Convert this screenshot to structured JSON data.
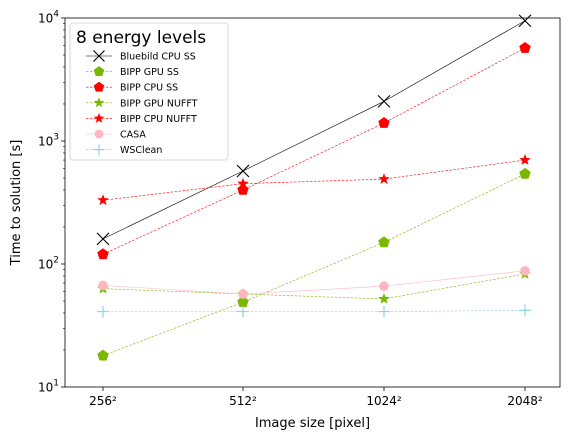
{
  "chart_data": {
    "type": "line",
    "title": "",
    "legend_title": "8 energy levels",
    "legend_position": "upper-left",
    "xlabel": "Image size [pixel]",
    "ylabel": "Time to solution [s]",
    "yscale": "log",
    "ylim": [
      10,
      10000
    ],
    "grid": false,
    "categories": [
      "256²",
      "512²",
      "1024²",
      "2048²"
    ],
    "y_ticks": [
      {
        "value": 10,
        "mantissa": "10",
        "exp": "1"
      },
      {
        "value": 100,
        "mantissa": "10",
        "exp": "2"
      },
      {
        "value": 1000,
        "mantissa": "10",
        "exp": "3"
      },
      {
        "value": 10000,
        "mantissa": "10",
        "exp": "4"
      }
    ],
    "series": [
      {
        "name": "Bluebild CPU SS",
        "values": [
          160,
          570,
          2100,
          9500
        ],
        "color": "#000000",
        "marker": "x",
        "linestyle": "solid",
        "linewidth": 0.6
      },
      {
        "name": "BIPP GPU SS",
        "values": [
          18,
          49,
          150,
          540
        ],
        "color": "#7ab800",
        "marker": "pentagon",
        "linestyle": "dashed",
        "linewidth": 0.6
      },
      {
        "name": "BIPP CPU SS",
        "values": [
          120,
          400,
          1400,
          5700
        ],
        "color": "#ff0000",
        "marker": "pentagon",
        "linestyle": "dashed",
        "linewidth": 0.6
      },
      {
        "name": "BIPP GPU NUFFT",
        "values": [
          63,
          57,
          52,
          83
        ],
        "color": "#7ab800",
        "marker": "star",
        "linestyle": "dashed",
        "linewidth": 0.6
      },
      {
        "name": "BIPP CPU NUFFT",
        "values": [
          330,
          450,
          490,
          700
        ],
        "color": "#ff0000",
        "marker": "star",
        "linestyle": "dashed",
        "linewidth": 0.6
      },
      {
        "name": "CASA",
        "values": [
          67,
          57,
          66,
          88
        ],
        "color": "#ffb6c1",
        "marker": "circle",
        "linestyle": "solid",
        "linewidth": 0.6
      },
      {
        "name": "WSClean",
        "values": [
          41,
          41,
          41,
          42
        ],
        "color": "#87ceeb",
        "marker": "plus",
        "linestyle": "dashed",
        "linewidth": 0.6
      }
    ]
  }
}
